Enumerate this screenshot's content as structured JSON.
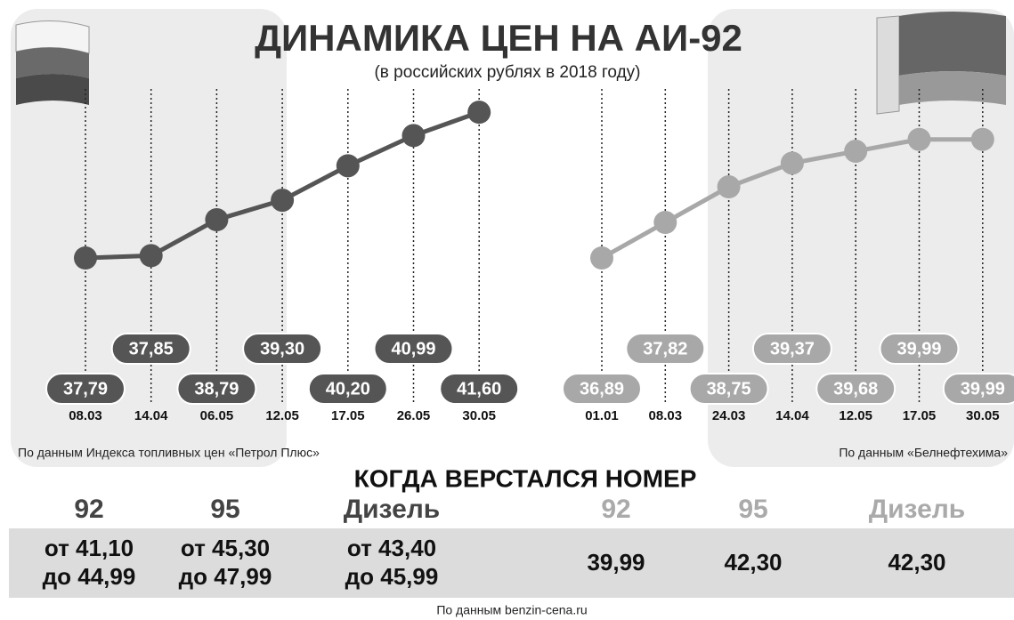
{
  "title": "ДИНАМИКА ЦЕН НА АИ-92",
  "subtitle": "(в российских рублях в 2018 году)",
  "chart_data": [
    {
      "type": "line",
      "categories": [
        "08.03",
        "14.04",
        "06.05",
        "12.05",
        "17.05",
        "26.05",
        "30.05"
      ],
      "series": [
        {
          "color": "#555555",
          "values": [
            37.79,
            37.85,
            38.79,
            39.3,
            40.2,
            40.99,
            41.6
          ],
          "value_labels": [
            "37,79",
            "37,85",
            "38,79",
            "39,30",
            "40,20",
            "40,99",
            "41,60"
          ]
        }
      ],
      "source": "По данным Индекса топливных цен «Петрол Плюс»"
    },
    {
      "type": "line",
      "categories": [
        "01.01",
        "08.03",
        "24.03",
        "14.04",
        "12.05",
        "17.05",
        "30.05"
      ],
      "series": [
        {
          "color": "#a8a8a8",
          "values": [
            36.89,
            37.82,
            38.75,
            39.37,
            39.68,
            39.99,
            39.99
          ],
          "value_labels": [
            "36,89",
            "37,82",
            "38,75",
            "39,37",
            "39,68",
            "39,99",
            "39,99"
          ]
        }
      ],
      "source": "По данным «Белнефтехима»"
    }
  ],
  "table": {
    "title": "КОГДА ВЕРСТАЛСЯ НОМЕР",
    "groups": [
      {
        "headers": [
          "92",
          "95",
          "Дизель"
        ],
        "cells": [
          [
            "от 41,10",
            "до 44,99"
          ],
          [
            "от 45,30",
            "до 47,99"
          ],
          [
            "от 43,40",
            "до 45,99"
          ]
        ]
      },
      {
        "headers": [
          "92",
          "95",
          "Дизель"
        ],
        "cells": [
          [
            "39,99"
          ],
          [
            "42,30"
          ],
          [
            "42,30"
          ]
        ]
      }
    ],
    "source": "По данным benzin-cena.ru"
  }
}
